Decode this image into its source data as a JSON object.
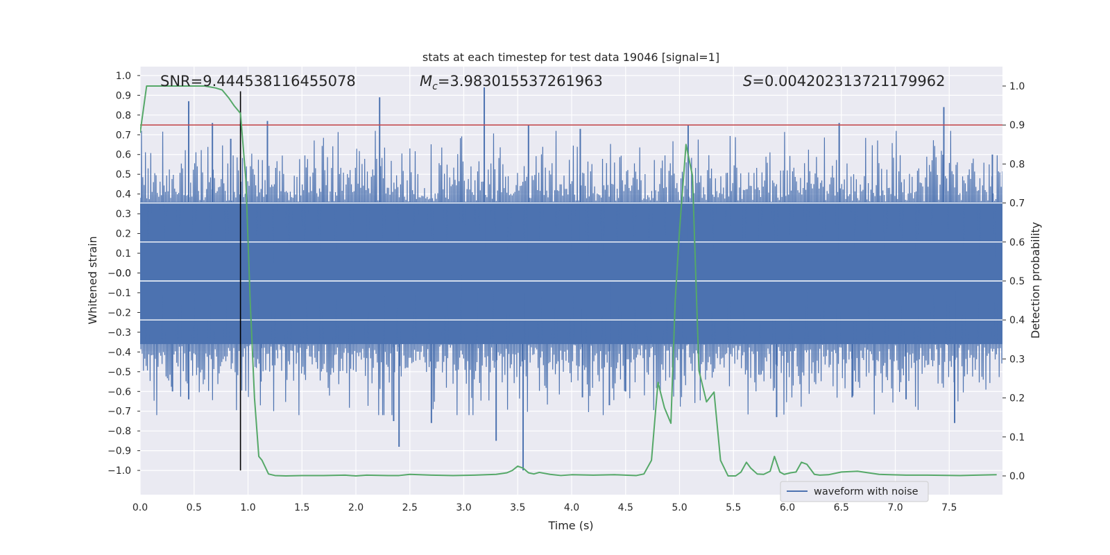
{
  "chart_data": {
    "type": "line",
    "title": "stats at each timestep for test data 19046 [signal=1]",
    "xlabel": "Time (s)",
    "ylabel_left": "Whitened strain",
    "ylabel_right": "Detection probability",
    "xlim": [
      0.0,
      8.0
    ],
    "ylim_left": [
      -1.1,
      1.04
    ],
    "ylim_right": [
      -0.05,
      1.04
    ],
    "x_ticks": [
      "0.0",
      "0.5",
      "1.0",
      "1.5",
      "2.0",
      "2.5",
      "3.0",
      "3.5",
      "4.0",
      "4.5",
      "5.0",
      "5.5",
      "6.0",
      "6.5",
      "7.0",
      "7.5"
    ],
    "y_ticks_left": [
      "1.0",
      "0.9",
      "0.8",
      "0.7",
      "0.6",
      "0.5",
      "0.4",
      "0.3",
      "0.2",
      "0.1",
      "0.0",
      "−0.0",
      "−0.1",
      "−0.2",
      "−0.3",
      "−0.4",
      "−0.5",
      "−0.6",
      "−0.7",
      "−0.8",
      "−0.9",
      "−1.0"
    ],
    "y_ticks_right": [
      "1.0",
      "0.9",
      "0.8",
      "0.7",
      "0.6",
      "0.5",
      "0.4",
      "0.3",
      "0.2",
      "0.1",
      "0.0"
    ],
    "grid": true,
    "legend": {
      "location": "lower-right",
      "entries": [
        "waveform with noise"
      ]
    },
    "annotations": {
      "snr": "SNR=9.444538116455078",
      "mc_symbol": "M",
      "mc_sub": "c",
      "mc_value": "=3.983015537261963",
      "s_symbol": "S",
      "s_value": "=0.004202313721179962"
    },
    "threshold": 0.9,
    "marker_time": 0.93,
    "marker_range": [
      -1.0,
      0.92
    ],
    "waveform": {
      "name": "waveform with noise",
      "t_range": [
        0.0,
        8.0
      ],
      "sample_count": 1300,
      "typical_amplitude": 0.4,
      "peaks": [
        {
          "t": 0.45,
          "v": 0.87
        },
        {
          "t": 0.45,
          "v": -0.64
        },
        {
          "t": 0.67,
          "v": 0.76
        },
        {
          "t": 0.84,
          "v": 0.68
        },
        {
          "t": 1.18,
          "v": 0.77
        },
        {
          "t": 1.12,
          "v": -0.55
        },
        {
          "t": 2.22,
          "v": 0.89
        },
        {
          "t": 2.4,
          "v": -0.88
        },
        {
          "t": 2.35,
          "v": -0.75
        },
        {
          "t": 2.7,
          "v": -0.76
        },
        {
          "t": 3.19,
          "v": 0.94
        },
        {
          "t": 3.3,
          "v": -0.85
        },
        {
          "t": 3.55,
          "v": -1.0
        },
        {
          "t": 3.6,
          "v": 0.75
        },
        {
          "t": 4.08,
          "v": 0.73
        },
        {
          "t": 4.1,
          "v": -0.63
        },
        {
          "t": 4.35,
          "v": -0.67
        },
        {
          "t": 4.5,
          "v": -0.6
        },
        {
          "t": 5.08,
          "v": 0.75
        },
        {
          "t": 5.9,
          "v": -0.73
        },
        {
          "t": 6.48,
          "v": 0.76
        },
        {
          "t": 6.6,
          "v": -0.63
        },
        {
          "t": 7.1,
          "v": -0.64
        },
        {
          "t": 7.45,
          "v": 0.84
        },
        {
          "t": 7.55,
          "v": -0.76
        },
        {
          "t": 7.9,
          "v": 0.6
        },
        {
          "t": 0.3,
          "v": -0.6
        }
      ]
    },
    "detection_probability": {
      "t": [
        0.0,
        0.06,
        0.12,
        0.2,
        0.3,
        0.4,
        0.5,
        0.6,
        0.7,
        0.76,
        0.82,
        0.87,
        0.93,
        0.98,
        1.02,
        1.06,
        1.1,
        1.13,
        1.19,
        1.25,
        1.35,
        1.5,
        1.7,
        1.9,
        2.0,
        2.1,
        2.3,
        2.4,
        2.5,
        2.7,
        2.9,
        3.1,
        3.3,
        3.4,
        3.45,
        3.5,
        3.55,
        3.6,
        3.65,
        3.7,
        3.8,
        3.9,
        4.0,
        4.2,
        4.4,
        4.6,
        4.67,
        4.74,
        4.8,
        4.86,
        4.92,
        4.96,
        5.0,
        5.06,
        5.12,
        5.18,
        5.25,
        5.32,
        5.38,
        5.45,
        5.52,
        5.57,
        5.62,
        5.66,
        5.72,
        5.78,
        5.84,
        5.88,
        5.93,
        5.97,
        6.03,
        6.08,
        6.13,
        6.18,
        6.25,
        6.3,
        6.38,
        6.5,
        6.65,
        6.75,
        6.85,
        6.95,
        7.1,
        7.3,
        7.6,
        7.94
      ],
      "p": [
        0.88,
        1.0,
        1.0,
        1.0,
        1.0,
        1.0,
        1.0,
        1.0,
        0.995,
        0.99,
        0.97,
        0.95,
        0.93,
        0.76,
        0.45,
        0.2,
        0.05,
        0.04,
        0.005,
        0.001,
        0.0,
        0.001,
        0.001,
        0.002,
        0.0,
        0.002,
        0.001,
        0.001,
        0.004,
        0.002,
        0.001,
        0.002,
        0.004,
        0.008,
        0.014,
        0.025,
        0.02,
        0.008,
        0.005,
        0.009,
        0.004,
        0.001,
        0.003,
        0.002,
        0.003,
        0.001,
        0.005,
        0.04,
        0.24,
        0.175,
        0.135,
        0.45,
        0.63,
        0.85,
        0.77,
        0.27,
        0.19,
        0.215,
        0.04,
        0.0,
        0.0,
        0.01,
        0.035,
        0.02,
        0.005,
        0.004,
        0.012,
        0.05,
        0.01,
        0.004,
        0.008,
        0.01,
        0.035,
        0.03,
        0.004,
        0.002,
        0.003,
        0.01,
        0.012,
        0.008,
        0.004,
        0.003,
        0.002,
        0.002,
        0.001,
        0.003
      ]
    }
  }
}
